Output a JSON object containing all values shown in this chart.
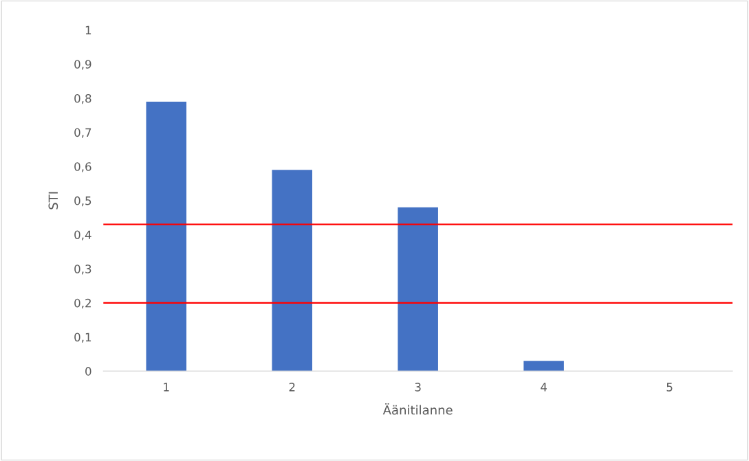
{
  "chart_data": {
    "type": "bar",
    "xlabel": "Äänitilanne",
    "ylabel": "STI",
    "categories": [
      "1",
      "2",
      "3",
      "4",
      "5"
    ],
    "values": [
      0.79,
      0.59,
      0.48,
      0.03,
      0
    ],
    "color": "#4472c4",
    "ylim": [
      0,
      1
    ],
    "yticks": [
      0,
      {
        "value": 0.1,
        "label": "0,1"
      },
      {
        "value": 0.2,
        "label": "0,2"
      },
      {
        "value": 0.3,
        "label": "0,3"
      },
      {
        "value": 0.4,
        "label": "0,4"
      },
      {
        "value": 0.5,
        "label": "0,5"
      },
      {
        "value": 0.6,
        "label": "0,6"
      },
      {
        "value": 0.7,
        "label": "0,7"
      },
      {
        "value": 0.8,
        "label": "0,8"
      },
      {
        "value": 0.9,
        "label": "0,9"
      },
      1
    ],
    "ref_lines": [
      {
        "axis": "y",
        "value": 0.43,
        "color": "#ff0000"
      },
      {
        "axis": "y",
        "value": 0.2,
        "color": "#ff0000"
      }
    ],
    "grid": false,
    "legend": false
  }
}
